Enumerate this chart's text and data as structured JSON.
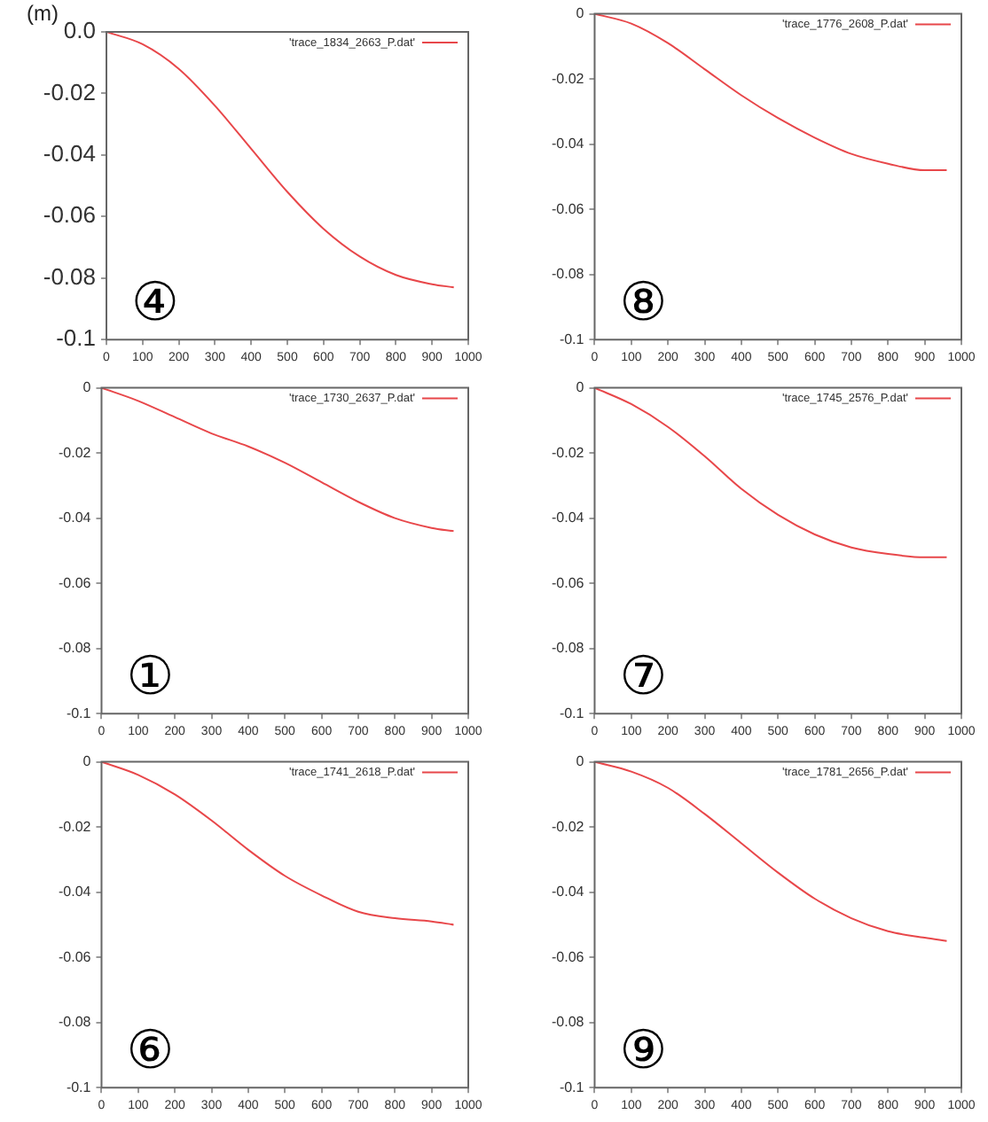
{
  "chart_data": [
    {
      "type": "line",
      "ylabel": "(m)",
      "legend": "top right",
      "grid": false,
      "annotations": [
        "④"
      ],
      "xlim": [
        0,
        1000
      ],
      "xticks": [
        0,
        100,
        200,
        300,
        400,
        500,
        600,
        700,
        800,
        900,
        1000
      ],
      "ylim": [
        -0.1,
        0
      ],
      "yticks": [
        {
          "value": 0,
          "label": "0.0"
        },
        -0.02,
        -0.04,
        -0.06,
        -0.08,
        -0.1
      ],
      "x": [
        0,
        100,
        200,
        300,
        400,
        500,
        600,
        700,
        800,
        900,
        960
      ],
      "series": [
        {
          "name": "'trace_1834_2663_P.dat'",
          "color": "#e8474a",
          "values": [
            0,
            -0.004,
            -0.012,
            -0.024,
            -0.038,
            -0.052,
            -0.064,
            -0.073,
            -0.079,
            -0.082,
            -0.083
          ]
        }
      ]
    },
    {
      "type": "line",
      "legend": "top right",
      "grid": false,
      "annotations": [
        "⑧"
      ],
      "xlim": [
        0,
        1000
      ],
      "xticks": [
        0,
        100,
        200,
        300,
        400,
        500,
        600,
        700,
        800,
        900,
        1000
      ],
      "ylim": [
        -0.1,
        0
      ],
      "yticks": [
        0,
        -0.02,
        -0.04,
        -0.06,
        -0.08,
        -0.1
      ],
      "x": [
        0,
        100,
        200,
        300,
        400,
        500,
        600,
        700,
        800,
        900,
        960
      ],
      "series": [
        {
          "name": "'trace_1776_2608_P.dat'",
          "color": "#e8474a",
          "values": [
            0,
            -0.003,
            -0.009,
            -0.017,
            -0.025,
            -0.032,
            -0.038,
            -0.043,
            -0.046,
            -0.048,
            -0.048
          ]
        }
      ]
    },
    {
      "type": "line",
      "legend": "top right",
      "grid": false,
      "annotations": [
        "①"
      ],
      "xlim": [
        0,
        1000
      ],
      "xticks": [
        0,
        100,
        200,
        300,
        400,
        500,
        600,
        700,
        800,
        900,
        1000
      ],
      "ylim": [
        -0.1,
        0
      ],
      "yticks": [
        0,
        -0.02,
        -0.04,
        -0.06,
        -0.08,
        -0.1
      ],
      "x": [
        0,
        100,
        200,
        300,
        400,
        500,
        600,
        700,
        800,
        900,
        960
      ],
      "series": [
        {
          "name": "'trace_1730_2637_P.dat'",
          "color": "#e8474a",
          "values": [
            0,
            -0.004,
            -0.009,
            -0.014,
            -0.018,
            -0.023,
            -0.029,
            -0.035,
            -0.04,
            -0.043,
            -0.044
          ]
        }
      ]
    },
    {
      "type": "line",
      "legend": "top right",
      "grid": false,
      "annotations": [
        "⑦"
      ],
      "xlim": [
        0,
        1000
      ],
      "xticks": [
        0,
        100,
        200,
        300,
        400,
        500,
        600,
        700,
        800,
        900,
        1000
      ],
      "ylim": [
        -0.1,
        0
      ],
      "yticks": [
        0,
        -0.02,
        -0.04,
        -0.06,
        -0.08,
        -0.1
      ],
      "x": [
        0,
        100,
        200,
        300,
        400,
        500,
        600,
        700,
        800,
        900,
        960
      ],
      "series": [
        {
          "name": "'trace_1745_2576_P.dat'",
          "color": "#e8474a",
          "values": [
            0,
            -0.005,
            -0.012,
            -0.021,
            -0.031,
            -0.039,
            -0.045,
            -0.049,
            -0.051,
            -0.052,
            -0.052
          ]
        }
      ]
    },
    {
      "type": "line",
      "legend": "top right",
      "grid": false,
      "annotations": [
        "⑥"
      ],
      "xlim": [
        0,
        1000
      ],
      "xticks": [
        0,
        100,
        200,
        300,
        400,
        500,
        600,
        700,
        800,
        900,
        1000
      ],
      "ylim": [
        -0.1,
        0
      ],
      "yticks": [
        0,
        -0.02,
        -0.04,
        -0.06,
        -0.08,
        -0.1
      ],
      "x": [
        0,
        100,
        200,
        300,
        400,
        500,
        600,
        700,
        800,
        900,
        960
      ],
      "series": [
        {
          "name": "'trace_1741_2618_P.dat'",
          "color": "#e8474a",
          "values": [
            0,
            -0.004,
            -0.01,
            -0.018,
            -0.027,
            -0.035,
            -0.041,
            -0.046,
            -0.048,
            -0.049,
            -0.05
          ]
        }
      ]
    },
    {
      "type": "line",
      "legend": "top right",
      "grid": false,
      "annotations": [
        "⑨"
      ],
      "xlim": [
        0,
        1000
      ],
      "xticks": [
        0,
        100,
        200,
        300,
        400,
        500,
        600,
        700,
        800,
        900,
        1000
      ],
      "ylim": [
        -0.1,
        0
      ],
      "yticks": [
        0,
        -0.02,
        -0.04,
        -0.06,
        -0.08,
        -0.1
      ],
      "x": [
        0,
        100,
        200,
        300,
        400,
        500,
        600,
        700,
        800,
        900,
        960
      ],
      "series": [
        {
          "name": "'trace_1781_2656_P.dat'",
          "color": "#e8474a",
          "values": [
            0,
            -0.003,
            -0.008,
            -0.016,
            -0.025,
            -0.034,
            -0.042,
            -0.048,
            -0.052,
            -0.054,
            -0.055
          ]
        }
      ]
    }
  ]
}
